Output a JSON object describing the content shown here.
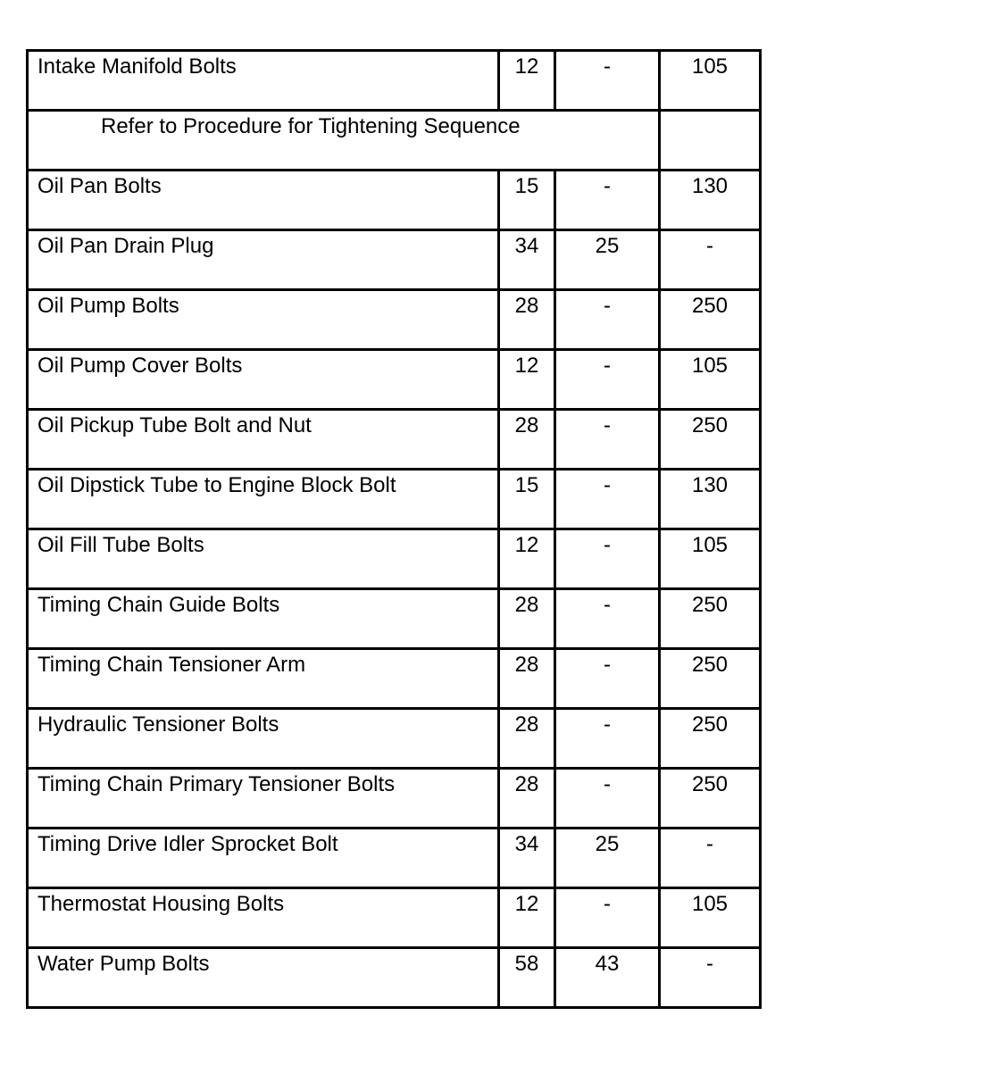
{
  "rows": [
    {
      "type": "data",
      "name": "Intake Manifold Bolts",
      "a": "12",
      "b": "-",
      "c": "105"
    },
    {
      "type": "note",
      "text": "Refer to Procedure for Tightening Sequence",
      "c": ""
    },
    {
      "type": "data",
      "name": "Oil Pan Bolts",
      "a": "15",
      "b": "-",
      "c": "130"
    },
    {
      "type": "data",
      "name": "Oil Pan Drain Plug",
      "a": "34",
      "b": "25",
      "c": "-"
    },
    {
      "type": "data",
      "name": "Oil Pump Bolts",
      "a": "28",
      "b": "-",
      "c": "250"
    },
    {
      "type": "data",
      "name": "Oil Pump Cover Bolts",
      "a": "12",
      "b": "-",
      "c": "105"
    },
    {
      "type": "data",
      "name": "Oil Pickup Tube Bolt and Nut",
      "a": "28",
      "b": "-",
      "c": "250"
    },
    {
      "type": "data",
      "name": "Oil Dipstick Tube to Engine Block Bolt",
      "a": "15",
      "b": "-",
      "c": "130"
    },
    {
      "type": "data",
      "name": "Oil Fill Tube Bolts",
      "a": "12",
      "b": "-",
      "c": "105"
    },
    {
      "type": "data",
      "name": "Timing Chain Guide Bolts",
      "a": "28",
      "b": "-",
      "c": "250"
    },
    {
      "type": "data",
      "name": "Timing Chain Tensioner Arm",
      "a": "28",
      "b": "-",
      "c": "250"
    },
    {
      "type": "data",
      "name": "Hydraulic Tensioner Bolts",
      "a": "28",
      "b": "-",
      "c": "250"
    },
    {
      "type": "data",
      "name": "Timing Chain Primary Tensioner Bolts",
      "a": "28",
      "b": "-",
      "c": "250"
    },
    {
      "type": "data",
      "name": "Timing Drive Idler Sprocket Bolt",
      "a": "34",
      "b": "25",
      "c": "-"
    },
    {
      "type": "data",
      "name": "Thermostat Housing Bolts",
      "a": "12",
      "b": "-",
      "c": "105"
    },
    {
      "type": "data",
      "name": "Water Pump Bolts",
      "a": "58",
      "b": "43",
      "c": "-"
    }
  ]
}
